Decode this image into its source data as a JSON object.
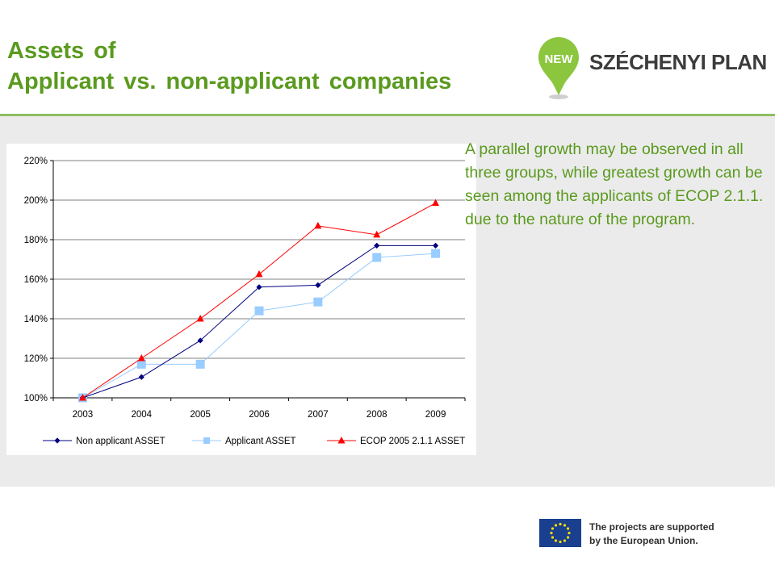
{
  "title": {
    "line1": "Assets of",
    "line2": "Applicant vs. non-applicant companies"
  },
  "logo": {
    "badge_text": "NEW",
    "text": "SZÉCHENYI PLAN",
    "pin_color": "#8cc63f"
  },
  "description": "A parallel growth may be observed in all three groups, while greatest growth can be seen among the applicants of ECOP 2.1.1. due to the nature of the program.",
  "footer": {
    "eu_line1": "The projects are supported",
    "eu_line2": "by the European Union."
  },
  "colors": {
    "accent": "#5a9a1e",
    "panel": "#ebebeb"
  },
  "chart_data": {
    "type": "line",
    "categories": [
      "2003",
      "2004",
      "2005",
      "2006",
      "2007",
      "2008",
      "2009"
    ],
    "ylim": [
      100,
      220
    ],
    "ytick_step": 20,
    "y_unit": "%",
    "grid": true,
    "legend_position": "bottom",
    "series": [
      {
        "name": "Non applicant ASSET",
        "values": [
          100,
          110.5,
          129,
          156,
          157,
          177,
          177
        ],
        "color": "#000080",
        "marker": "diamond"
      },
      {
        "name": "Applicant ASSET",
        "values": [
          100,
          117,
          117,
          144,
          148.5,
          171,
          173
        ],
        "color": "#99ccff",
        "marker": "square"
      },
      {
        "name": "ECOP 2005 2.1.1 ASSET",
        "values": [
          100,
          120,
          140,
          162.5,
          187,
          182.5,
          198.5
        ],
        "color": "#ff0000",
        "marker": "triangle"
      }
    ]
  }
}
